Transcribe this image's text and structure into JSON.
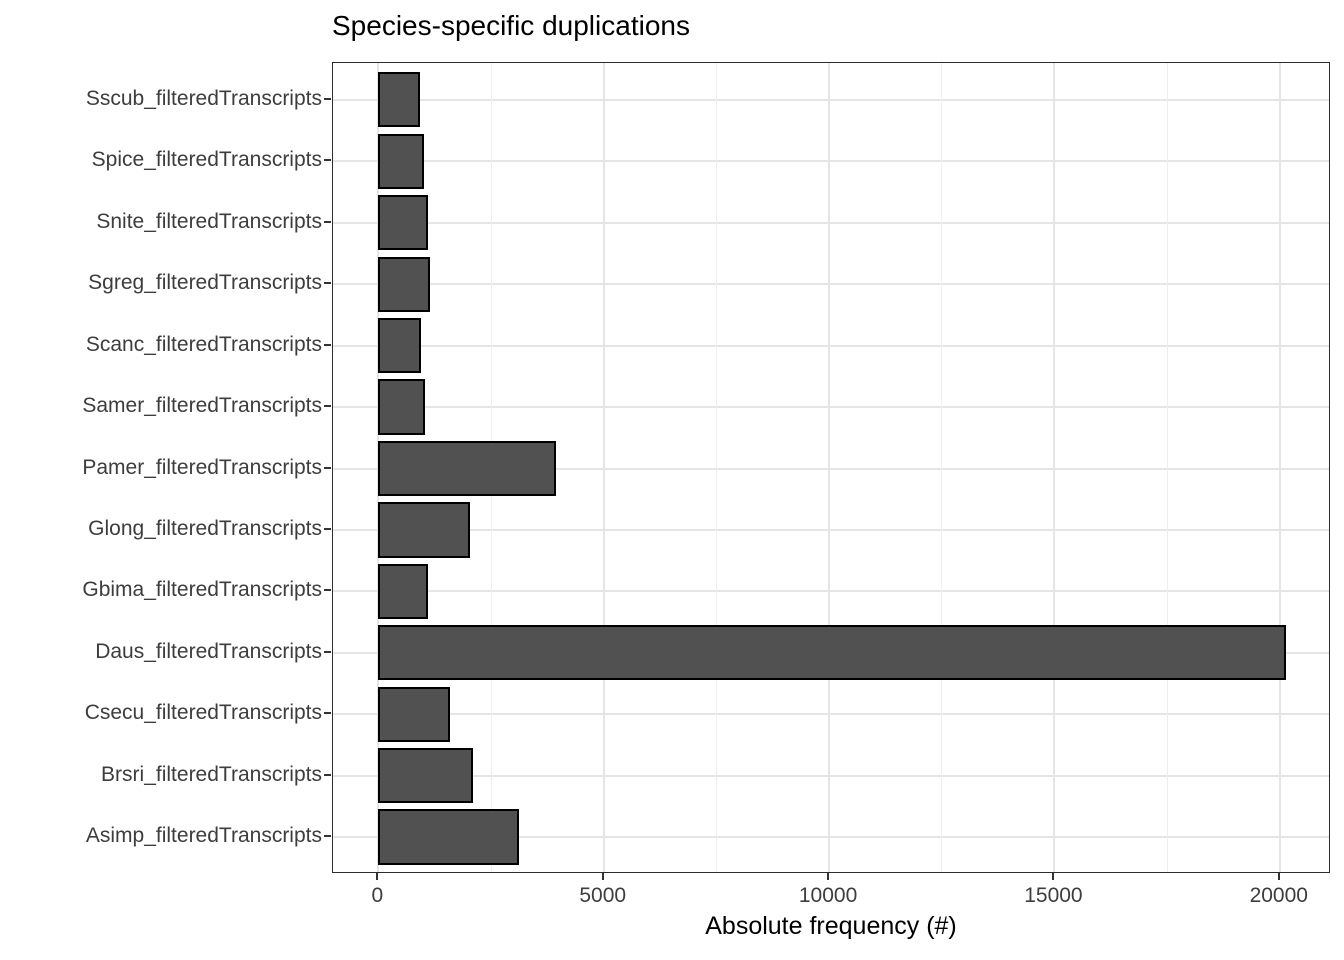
{
  "chart_data": {
    "type": "bar",
    "orientation": "horizontal",
    "title": "Species-specific duplications",
    "xlabel": "Absolute frequency (#)",
    "ylabel": "",
    "categories_order": "top-to-bottom",
    "categories": [
      "Sscub_filteredTranscripts",
      "Spice_filteredTranscripts",
      "Snite_filteredTranscripts",
      "Sgreg_filteredTranscripts",
      "Scanc_filteredTranscripts",
      "Samer_filteredTranscripts",
      "Pamer_filteredTranscripts",
      "Glong_filteredTranscripts",
      "Gbima_filteredTranscripts",
      "Daus_filteredTranscripts",
      "Csecu_filteredTranscripts",
      "Brsri_filteredTranscripts",
      "Asimp_filteredTranscripts"
    ],
    "values": [
      930,
      1020,
      1110,
      1150,
      950,
      1040,
      3940,
      2040,
      1110,
      20130,
      1580,
      2100,
      3110
    ],
    "x_ticks": [
      0,
      5000,
      10000,
      15000,
      20000
    ],
    "x_tick_labels": [
      "0",
      "5000",
      "10000",
      "15000",
      "20000"
    ],
    "x_minor_gridlines": [
      2500,
      7500,
      12500,
      17500
    ],
    "xlim": [
      0,
      20130
    ],
    "grid": "major-and-minor",
    "legend": "none",
    "colors": {
      "bar_fill": "#515151",
      "bar_border": "#000000",
      "grid_major": "#e5e5e5",
      "grid_minor": "#eeeeee",
      "panel_border": "#2d2d2d",
      "axis_tick": "#333333",
      "axis_text": "#3d3d3d",
      "title_text": "#000000",
      "background": "#ffffff"
    }
  }
}
